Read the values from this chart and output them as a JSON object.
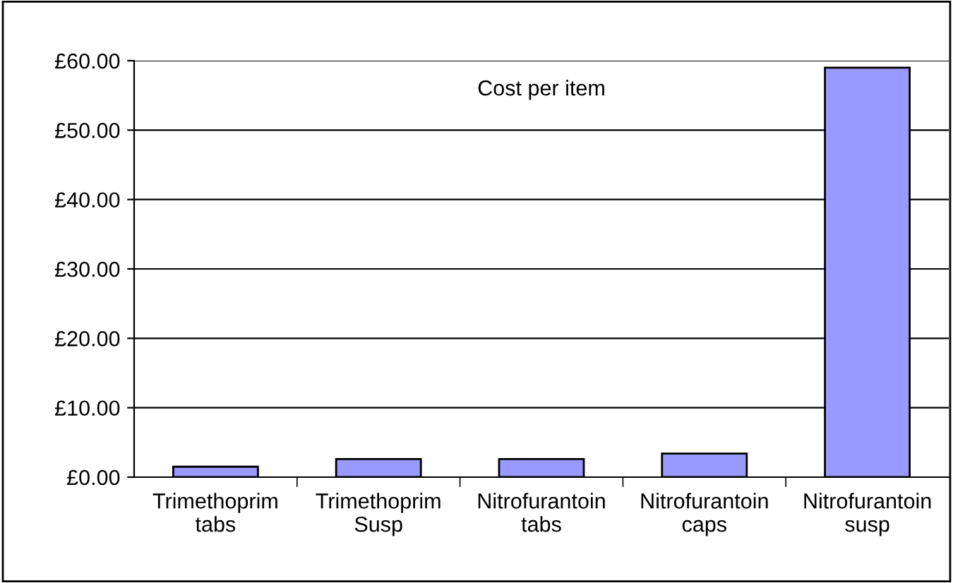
{
  "chart_data": {
    "type": "bar",
    "title": "Cost per item",
    "categories": [
      "Trimethoprim\ntabs",
      "Trimethoprim\nSusp",
      "Nitrofurantoin\ntabs",
      "Nitrofurantoin\ncaps",
      "Nitrofurantoin\nsusp"
    ],
    "values": [
      1.5,
      2.6,
      2.6,
      3.4,
      59
    ],
    "color": "#9999ff",
    "ylim": [
      0,
      60
    ],
    "yticks": [
      {
        "value": 0,
        "label": "£0.00"
      },
      {
        "value": 10,
        "label": "£10.00"
      },
      {
        "value": 20,
        "label": "£20.00"
      },
      {
        "value": 30,
        "label": "£30.00"
      },
      {
        "value": 40,
        "label": "£40.00"
      },
      {
        "value": 50,
        "label": "£50.00"
      },
      {
        "value": 60,
        "label": "£60.00"
      }
    ],
    "grid": "y"
  }
}
